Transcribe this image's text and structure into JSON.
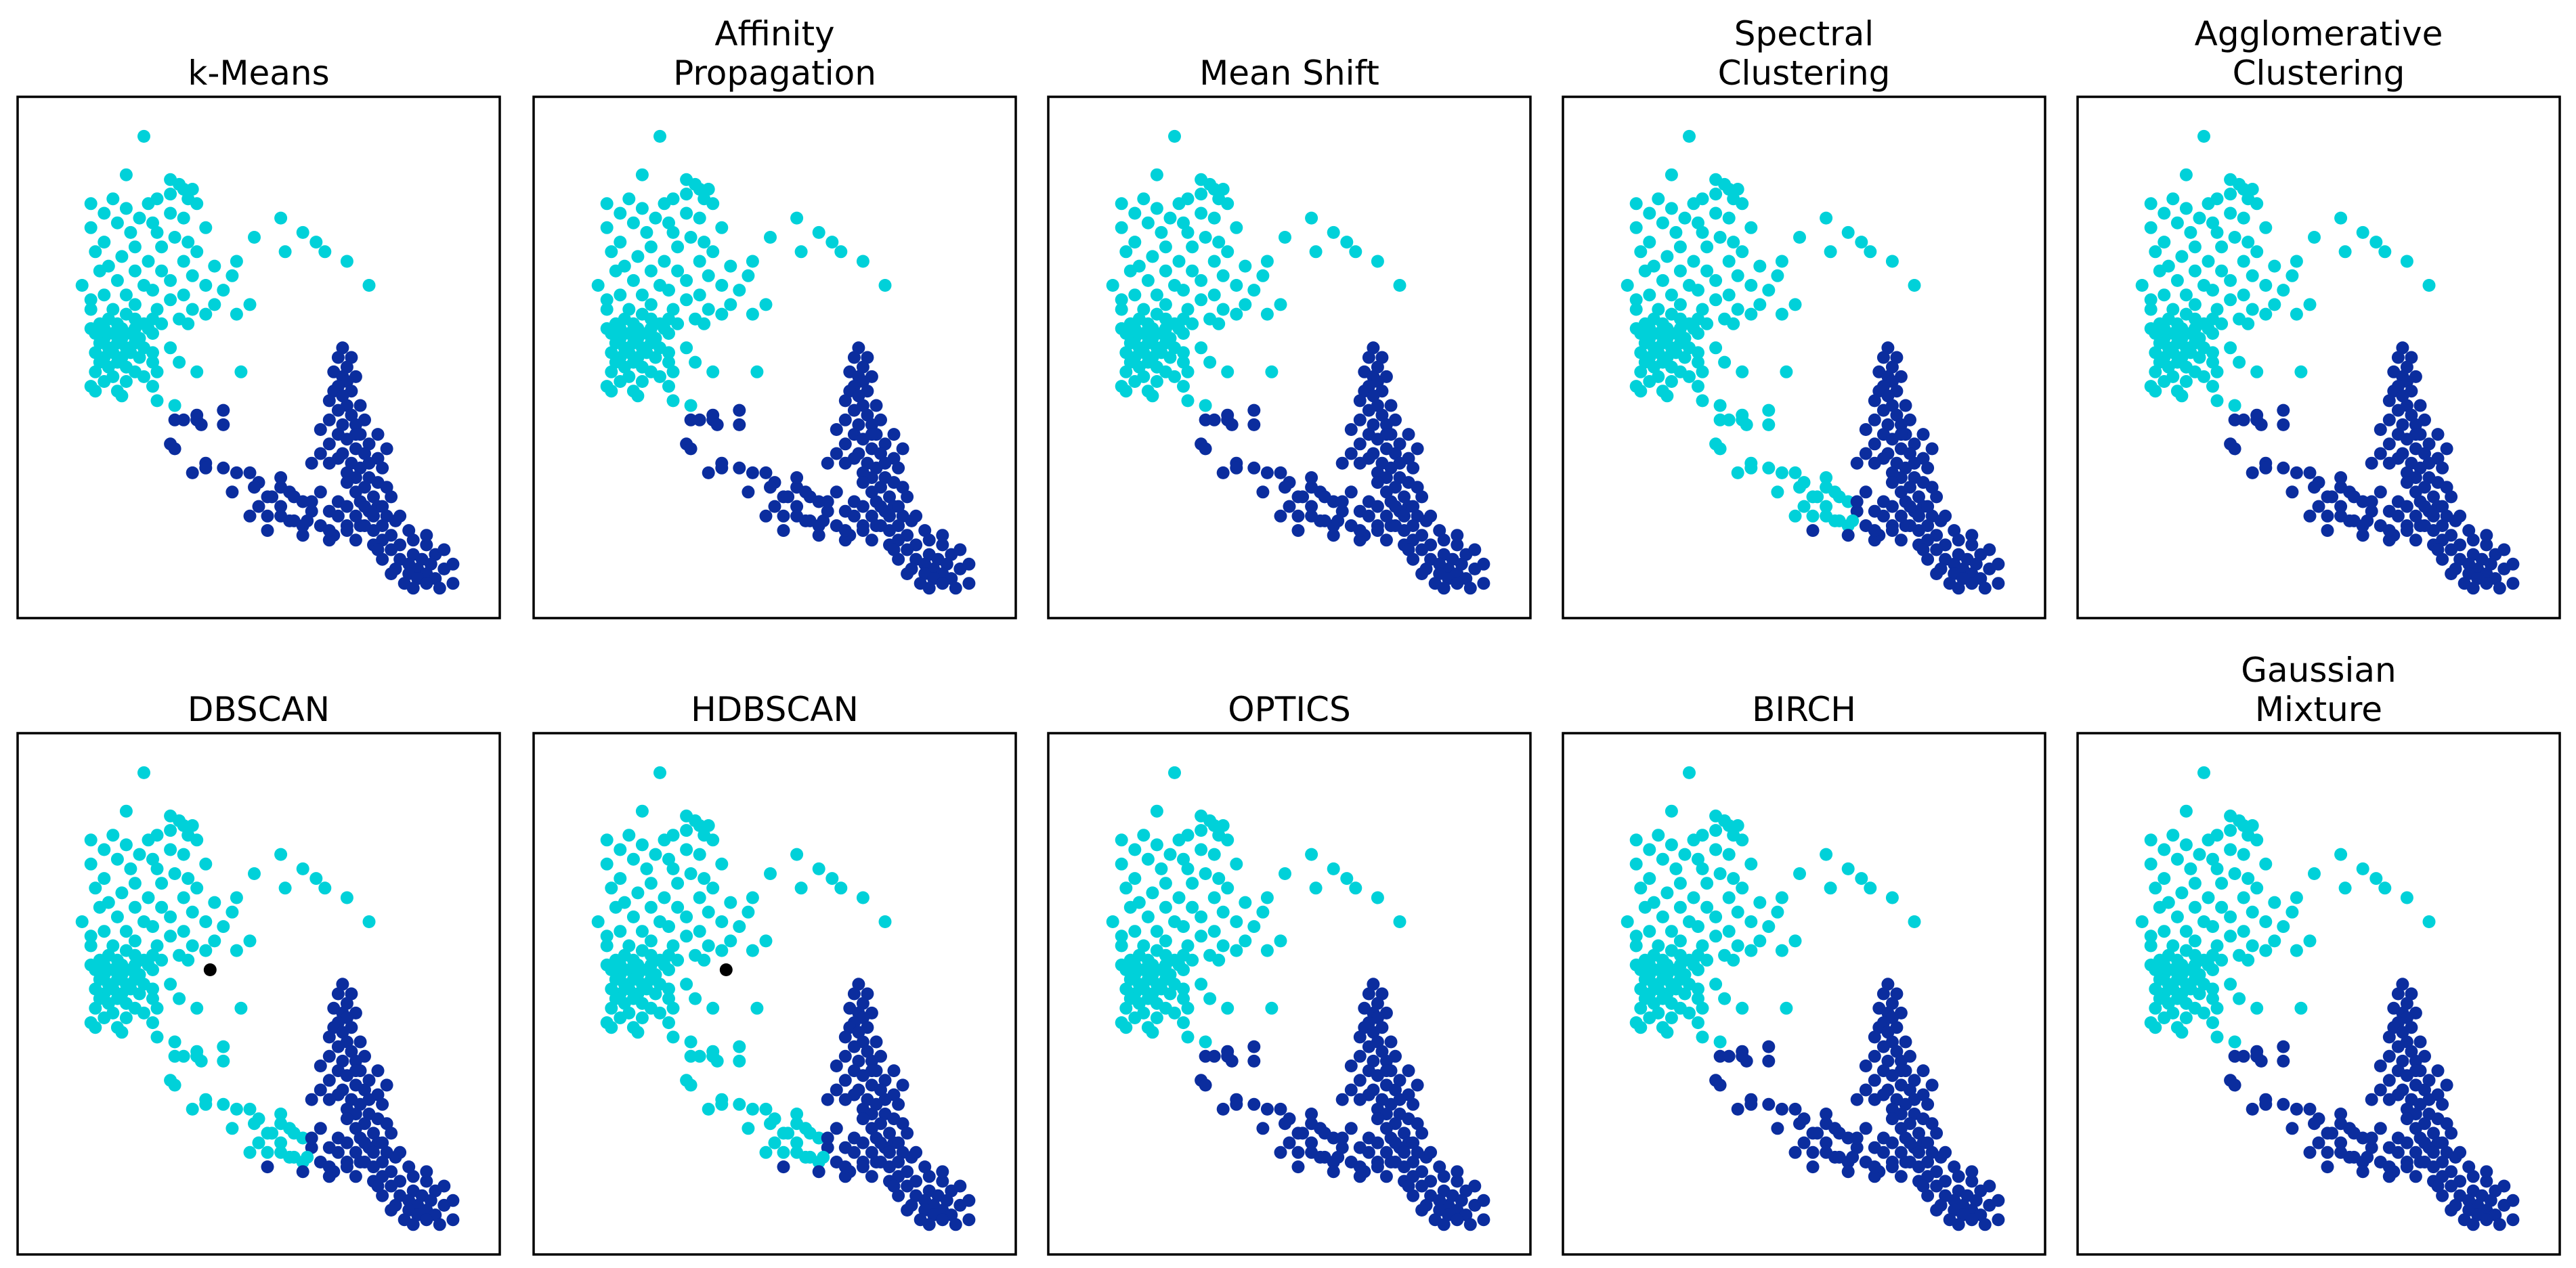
{
  "chart_data": {
    "type": "scatter",
    "layout": {
      "rows": 2,
      "cols": 5
    },
    "colors": {
      "cluster_0": "#00d1d9",
      "cluster_1": "#0b2d9e",
      "noise": "#000000",
      "frame": "#000000",
      "background": "#ffffff"
    },
    "points": [
      [
        0.24,
        0.96
      ],
      [
        0.2,
        0.88
      ],
      [
        0.3,
        0.87
      ],
      [
        0.32,
        0.86
      ],
      [
        0.33,
        0.85
      ],
      [
        0.35,
        0.85
      ],
      [
        0.3,
        0.84
      ],
      [
        0.27,
        0.83
      ],
      [
        0.34,
        0.83
      ],
      [
        0.17,
        0.83
      ],
      [
        0.25,
        0.82
      ],
      [
        0.36,
        0.82
      ],
      [
        0.12,
        0.82
      ],
      [
        0.2,
        0.81
      ],
      [
        0.3,
        0.8
      ],
      [
        0.15,
        0.8
      ],
      [
        0.23,
        0.79
      ],
      [
        0.33,
        0.79
      ],
      [
        0.55,
        0.79
      ],
      [
        0.26,
        0.78
      ],
      [
        0.18,
        0.78
      ],
      [
        0.38,
        0.77
      ],
      [
        0.12,
        0.77
      ],
      [
        0.27,
        0.76
      ],
      [
        0.6,
        0.76
      ],
      [
        0.21,
        0.76
      ],
      [
        0.31,
        0.75
      ],
      [
        0.49,
        0.75
      ],
      [
        0.15,
        0.74
      ],
      [
        0.34,
        0.74
      ],
      [
        0.63,
        0.74
      ],
      [
        0.22,
        0.73
      ],
      [
        0.28,
        0.73
      ],
      [
        0.36,
        0.72
      ],
      [
        0.13,
        0.72
      ],
      [
        0.65,
        0.72
      ],
      [
        0.56,
        0.72
      ],
      [
        0.19,
        0.71
      ],
      [
        0.25,
        0.7
      ],
      [
        0.45,
        0.7
      ],
      [
        0.33,
        0.7
      ],
      [
        0.7,
        0.7
      ],
      [
        0.4,
        0.69
      ],
      [
        0.16,
        0.69
      ],
      [
        0.28,
        0.68
      ],
      [
        0.22,
        0.68
      ],
      [
        0.14,
        0.68
      ],
      [
        0.35,
        0.67
      ],
      [
        0.44,
        0.67
      ],
      [
        0.3,
        0.66
      ],
      [
        0.18,
        0.66
      ],
      [
        0.38,
        0.65
      ],
      [
        0.24,
        0.65
      ],
      [
        0.1,
        0.65
      ],
      [
        0.75,
        0.65
      ],
      [
        0.26,
        0.64
      ],
      [
        0.42,
        0.64
      ],
      [
        0.33,
        0.63
      ],
      [
        0.15,
        0.63
      ],
      [
        0.2,
        0.63
      ],
      [
        0.12,
        0.62
      ],
      [
        0.3,
        0.62
      ],
      [
        0.4,
        0.61
      ],
      [
        0.48,
        0.61
      ],
      [
        0.22,
        0.61
      ],
      [
        0.35,
        0.6
      ],
      [
        0.17,
        0.6
      ],
      [
        0.27,
        0.6
      ],
      [
        0.12,
        0.6
      ],
      [
        0.45,
        0.59
      ],
      [
        0.38,
        0.59
      ],
      [
        0.2,
        0.59
      ],
      [
        0.26,
        0.58
      ],
      [
        0.32,
        0.58
      ],
      [
        0.16,
        0.58
      ],
      [
        0.22,
        0.58
      ],
      [
        0.14,
        0.57
      ],
      [
        0.34,
        0.57
      ],
      [
        0.18,
        0.57
      ],
      [
        0.24,
        0.57
      ],
      [
        0.28,
        0.57
      ],
      [
        0.12,
        0.56
      ],
      [
        0.19,
        0.56
      ],
      [
        0.25,
        0.56
      ],
      [
        0.15,
        0.56
      ],
      [
        0.22,
        0.56
      ],
      [
        0.13,
        0.55
      ],
      [
        0.17,
        0.55
      ],
      [
        0.21,
        0.55
      ],
      [
        0.26,
        0.55
      ],
      [
        0.15,
        0.54
      ],
      [
        0.19,
        0.54
      ],
      [
        0.23,
        0.54
      ],
      [
        0.14,
        0.53
      ],
      [
        0.18,
        0.53
      ],
      [
        0.22,
        0.53
      ],
      [
        0.16,
        0.52
      ],
      [
        0.2,
        0.52
      ],
      [
        0.24,
        0.52
      ],
      [
        0.3,
        0.52
      ],
      [
        0.13,
        0.51
      ],
      [
        0.17,
        0.51
      ],
      [
        0.21,
        0.51
      ],
      [
        0.26,
        0.51
      ],
      [
        0.15,
        0.5
      ],
      [
        0.19,
        0.5
      ],
      [
        0.23,
        0.5
      ],
      [
        0.14,
        0.49
      ],
      [
        0.18,
        0.49
      ],
      [
        0.26,
        0.49
      ],
      [
        0.32,
        0.49
      ],
      [
        0.2,
        0.48
      ],
      [
        0.16,
        0.48
      ],
      [
        0.13,
        0.47
      ],
      [
        0.22,
        0.47
      ],
      [
        0.27,
        0.47
      ],
      [
        0.36,
        0.47
      ],
      [
        0.17,
        0.46
      ],
      [
        0.24,
        0.46
      ],
      [
        0.15,
        0.45
      ],
      [
        0.2,
        0.45
      ],
      [
        0.12,
        0.44
      ],
      [
        0.26,
        0.44
      ],
      [
        0.18,
        0.43
      ],
      [
        0.13,
        0.43
      ],
      [
        0.19,
        0.42
      ],
      [
        0.46,
        0.47
      ],
      [
        0.42,
        0.39
      ],
      [
        0.27,
        0.41
      ],
      [
        0.31,
        0.4
      ],
      [
        0.36,
        0.38
      ],
      [
        0.31,
        0.37
      ],
      [
        0.33,
        0.37
      ],
      [
        0.36,
        0.37
      ],
      [
        0.37,
        0.36
      ],
      [
        0.42,
        0.36
      ],
      [
        0.3,
        0.32
      ],
      [
        0.31,
        0.31
      ],
      [
        0.38,
        0.28
      ],
      [
        0.38,
        0.27
      ],
      [
        0.35,
        0.26
      ],
      [
        0.42,
        0.27
      ],
      [
        0.45,
        0.26
      ],
      [
        0.48,
        0.26
      ],
      [
        0.5,
        0.24
      ],
      [
        0.49,
        0.23
      ],
      [
        0.55,
        0.23
      ],
      [
        0.52,
        0.21
      ],
      [
        0.44,
        0.22
      ],
      [
        0.5,
        0.19
      ],
      [
        0.48,
        0.17
      ],
      [
        0.55,
        0.19
      ],
      [
        0.57,
        0.16
      ],
      [
        0.6,
        0.15
      ],
      [
        0.62,
        0.18
      ],
      [
        0.6,
        0.2
      ],
      [
        0.64,
        0.22
      ],
      [
        0.57,
        0.22
      ],
      [
        0.64,
        0.15
      ],
      [
        0.66,
        0.18
      ],
      [
        0.67,
        0.13
      ],
      [
        0.7,
        0.15
      ],
      [
        0.66,
        0.12
      ],
      [
        0.6,
        0.13
      ],
      [
        0.52,
        0.14
      ],
      [
        0.52,
        0.17
      ],
      [
        0.55,
        0.17
      ],
      [
        0.58,
        0.16
      ],
      [
        0.61,
        0.16
      ],
      [
        0.53,
        0.21
      ],
      [
        0.58,
        0.21
      ],
      [
        0.62,
        0.2
      ],
      [
        0.68,
        0.2
      ],
      [
        0.55,
        0.25
      ],
      [
        0.69,
        0.52
      ],
      [
        0.68,
        0.5
      ],
      [
        0.71,
        0.5
      ],
      [
        0.7,
        0.48
      ],
      [
        0.67,
        0.47
      ],
      [
        0.69,
        0.46
      ],
      [
        0.72,
        0.46
      ],
      [
        0.7,
        0.45
      ],
      [
        0.68,
        0.44
      ],
      [
        0.67,
        0.43
      ],
      [
        0.71,
        0.43
      ],
      [
        0.69,
        0.42
      ],
      [
        0.66,
        0.41
      ],
      [
        0.7,
        0.4
      ],
      [
        0.73,
        0.4
      ],
      [
        0.68,
        0.39
      ],
      [
        0.71,
        0.38
      ],
      [
        0.74,
        0.37
      ],
      [
        0.66,
        0.37
      ],
      [
        0.69,
        0.36
      ],
      [
        0.72,
        0.36
      ],
      [
        0.64,
        0.35
      ],
      [
        0.68,
        0.34
      ],
      [
        0.73,
        0.34
      ],
      [
        0.77,
        0.34
      ],
      [
        0.7,
        0.33
      ],
      [
        0.75,
        0.32
      ],
      [
        0.66,
        0.32
      ],
      [
        0.72,
        0.31
      ],
      [
        0.79,
        0.31
      ],
      [
        0.69,
        0.3
      ],
      [
        0.74,
        0.3
      ],
      [
        0.77,
        0.29
      ],
      [
        0.71,
        0.28
      ],
      [
        0.75,
        0.28
      ],
      [
        0.73,
        0.27
      ],
      [
        0.78,
        0.27
      ],
      [
        0.7,
        0.26
      ],
      [
        0.75,
        0.25
      ],
      [
        0.72,
        0.25
      ],
      [
        0.77,
        0.24
      ],
      [
        0.74,
        0.23
      ],
      [
        0.79,
        0.23
      ],
      [
        0.72,
        0.22
      ],
      [
        0.76,
        0.21
      ],
      [
        0.8,
        0.21
      ],
      [
        0.73,
        0.2
      ],
      [
        0.77,
        0.19
      ],
      [
        0.7,
        0.19
      ],
      [
        0.75,
        0.18
      ],
      [
        0.79,
        0.17
      ],
      [
        0.68,
        0.17
      ],
      [
        0.81,
        0.16
      ],
      [
        0.73,
        0.15
      ],
      [
        0.7,
        0.14
      ],
      [
        0.76,
        0.14
      ],
      [
        0.66,
        0.14
      ],
      [
        0.84,
        0.14
      ],
      [
        0.8,
        0.13
      ],
      [
        0.72,
        0.12
      ],
      [
        0.78,
        0.12
      ],
      [
        0.85,
        0.12
      ],
      [
        0.76,
        0.11
      ],
      [
        0.82,
        0.11
      ],
      [
        0.88,
        0.11
      ],
      [
        0.8,
        0.1
      ],
      [
        0.85,
        0.09
      ],
      [
        0.9,
        0.09
      ],
      [
        0.82,
        0.08
      ],
      [
        0.87,
        0.08
      ],
      [
        0.78,
        0.08
      ],
      [
        0.84,
        0.07
      ],
      [
        0.89,
        0.07
      ],
      [
        0.81,
        0.06
      ],
      [
        0.86,
        0.06
      ],
      [
        0.92,
        0.06
      ],
      [
        0.84,
        0.05
      ],
      [
        0.88,
        0.05
      ],
      [
        0.8,
        0.05
      ],
      [
        0.86,
        0.04
      ],
      [
        0.9,
        0.04
      ],
      [
        0.83,
        0.03
      ],
      [
        0.88,
        0.03
      ],
      [
        0.94,
        0.03
      ],
      [
        0.85,
        0.02
      ],
      [
        0.91,
        0.02
      ],
      [
        0.74,
        0.15
      ],
      [
        0.78,
        0.15
      ],
      [
        0.88,
        0.13
      ],
      [
        0.92,
        0.1
      ],
      [
        0.94,
        0.07
      ],
      [
        0.77,
        0.1
      ],
      [
        0.82,
        0.17
      ],
      [
        0.68,
        0.29
      ],
      [
        0.64,
        0.3
      ],
      [
        0.66,
        0.28
      ],
      [
        0.62,
        0.28
      ],
      [
        0.7,
        0.24
      ],
      [
        0.74,
        0.19
      ],
      [
        0.76,
        0.17
      ],
      [
        0.72,
        0.17
      ],
      [
        0.78,
        0.19
      ],
      [
        0.72,
        0.34
      ]
    ],
    "panels": [
      {
        "title": "k-Means",
        "title_lines": [
          "k-Means"
        ],
        "noise": [],
        "cyan_bridge": false,
        "cyan_upper_tail": false,
        "upper_tail_idx": [],
        "extra_cyan_idx": []
      },
      {
        "title": "Affinity Propagation",
        "title_lines": [
          "Affinity",
          "Propagation"
        ],
        "noise": [],
        "cyan_bridge": false,
        "cyan_upper_tail": false,
        "upper_tail_idx": [],
        "extra_cyan_idx": []
      },
      {
        "title": "Mean Shift",
        "title_lines": [
          "Mean Shift"
        ],
        "noise": [],
        "cyan_bridge": false,
        "cyan_upper_tail": false,
        "upper_tail_idx": [],
        "extra_cyan_idx": []
      },
      {
        "title": "Spectral Clustering",
        "title_lines": [
          "Spectral",
          "Clustering"
        ],
        "noise": [],
        "cyan_bridge": true,
        "cyan_upper_tail": true,
        "upper_tail_idx": [],
        "extra_cyan_idx": []
      },
      {
        "title": "Agglomerative Clustering",
        "title_lines": [
          "Agglomerative",
          "Clustering"
        ],
        "noise": [],
        "cyan_bridge": false,
        "cyan_upper_tail": false,
        "upper_tail_idx": [],
        "extra_cyan_idx": []
      },
      {
        "title": "DBSCAN",
        "title_lines": [
          "DBSCAN"
        ],
        "noise": [
          [
            0.39,
            0.55
          ]
        ],
        "cyan_bridge": true,
        "cyan_upper_tail": false,
        "upper_tail_idx": [],
        "extra_cyan_idx": []
      },
      {
        "title": "HDBSCAN",
        "title_lines": [
          "HDBSCAN"
        ],
        "noise": [
          [
            0.39,
            0.55
          ]
        ],
        "cyan_bridge": true,
        "cyan_upper_tail": false,
        "upper_tail_idx": [],
        "extra_cyan_idx": []
      },
      {
        "title": "OPTICS",
        "title_lines": [
          "OPTICS"
        ],
        "noise": [],
        "cyan_bridge": false,
        "cyan_upper_tail": false,
        "upper_tail_idx": [],
        "extra_cyan_idx": []
      },
      {
        "title": "BIRCH",
        "title_lines": [
          "BIRCH"
        ],
        "noise": [],
        "cyan_bridge": false,
        "cyan_upper_tail": false,
        "upper_tail_idx": [],
        "extra_cyan_idx": []
      },
      {
        "title": "Gaussian Mixture",
        "title_lines": [
          "Gaussian",
          "Mixture"
        ],
        "noise": [],
        "cyan_bridge": false,
        "cyan_upper_tail": false,
        "upper_tail_idx": [],
        "extra_cyan_idx": []
      }
    ],
    "xlim": [
      0,
      1
    ],
    "ylim": [
      0,
      1
    ],
    "ticks": "none",
    "xlabel": "",
    "ylabel": ""
  }
}
